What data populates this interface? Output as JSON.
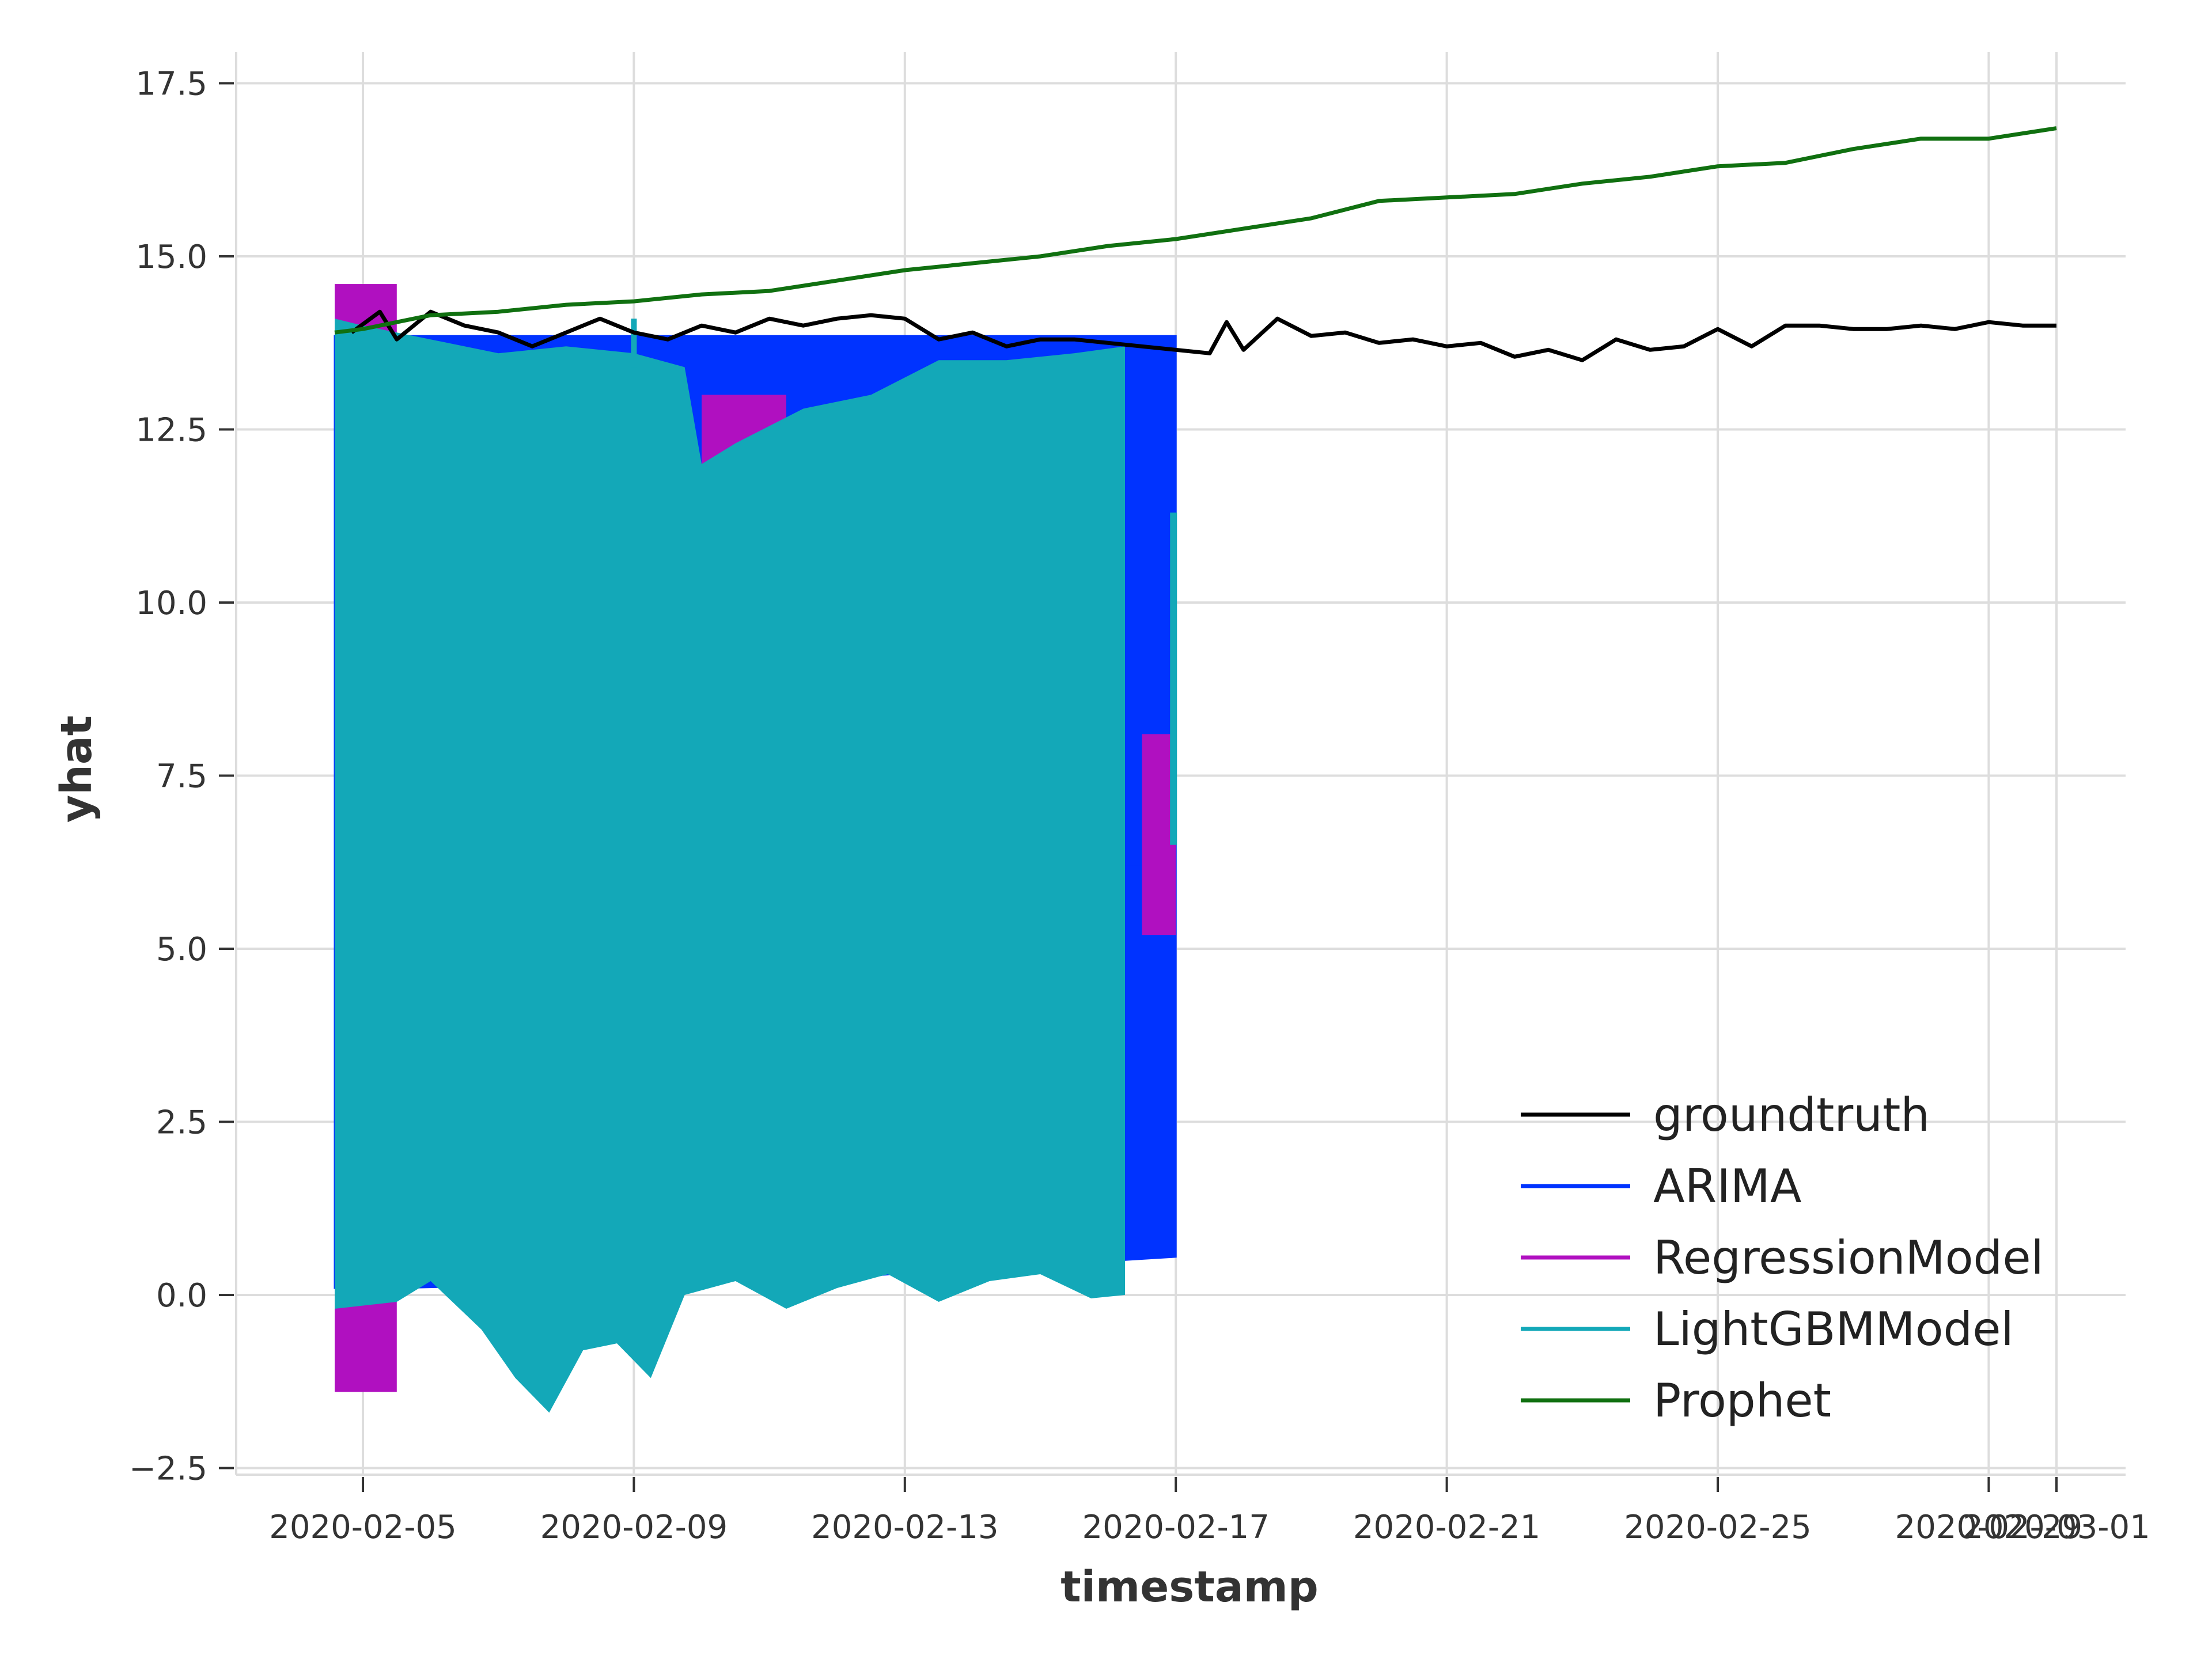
{
  "chart_data": {
    "type": "line",
    "xlabel": "timestamp",
    "ylabel": "yhat",
    "xlim": [
      "2020-02-04",
      "2020-03-02"
    ],
    "ylim": [
      -2.5,
      17.5
    ],
    "grid": true,
    "legend_position": "lower-right",
    "x_ticks": [
      "2020-02-05",
      "2020-02-09",
      "2020-02-13",
      "2020-02-17",
      "2020-02-21",
      "2020-02-25",
      "2020-02-29",
      "2020-03-01"
    ],
    "y_ticks": [
      "−2.5",
      "0.0",
      "2.5",
      "5.0",
      "7.5",
      "10.0",
      "12.5",
      "15.0",
      "17.5"
    ],
    "legend": [
      "groundtruth",
      "ARIMA",
      "RegressionModel",
      "LightGBMModel",
      "Prophet"
    ],
    "series": [
      {
        "name": "groundtruth",
        "color": "#000000",
        "style": "line",
        "points": [
          [
            "2020-02-04 20:00",
            13.9
          ],
          [
            "2020-02-05 06:00",
            14.2
          ],
          [
            "2020-02-05 12:00",
            13.8
          ],
          [
            "2020-02-06 00:00",
            14.2
          ],
          [
            "2020-02-06 12:00",
            14.0
          ],
          [
            "2020-02-07 00:00",
            13.9
          ],
          [
            "2020-02-07 12:00",
            13.7
          ],
          [
            "2020-02-08 00:00",
            13.9
          ],
          [
            "2020-02-08 12:00",
            14.1
          ],
          [
            "2020-02-09 00:00",
            13.9
          ],
          [
            "2020-02-09 12:00",
            13.8
          ],
          [
            "2020-02-10 00:00",
            14.0
          ],
          [
            "2020-02-10 12:00",
            13.9
          ],
          [
            "2020-02-11 00:00",
            14.1
          ],
          [
            "2020-02-11 12:00",
            14.0
          ],
          [
            "2020-02-12 00:00",
            14.1
          ],
          [
            "2020-02-12 12:00",
            14.15
          ],
          [
            "2020-02-13 00:00",
            14.1
          ],
          [
            "2020-02-13 12:00",
            13.8
          ],
          [
            "2020-02-14 00:00",
            13.9
          ],
          [
            "2020-02-14 12:00",
            13.7
          ],
          [
            "2020-02-15 00:00",
            13.8
          ],
          [
            "2020-02-15 12:00",
            13.8
          ],
          [
            "2020-02-16 00:00",
            13.75
          ],
          [
            "2020-02-16 12:00",
            13.7
          ],
          [
            "2020-02-17 00:00",
            13.65
          ],
          [
            "2020-02-17 12:00",
            13.6
          ],
          [
            "2020-02-17 18:00",
            14.05
          ],
          [
            "2020-02-18 00:00",
            13.65
          ],
          [
            "2020-02-18 12:00",
            14.1
          ],
          [
            "2020-02-19 00:00",
            13.85
          ],
          [
            "2020-02-19 12:00",
            13.9
          ],
          [
            "2020-02-20 00:00",
            13.75
          ],
          [
            "2020-02-20 12:00",
            13.8
          ],
          [
            "2020-02-21 00:00",
            13.7
          ],
          [
            "2020-02-21 12:00",
            13.75
          ],
          [
            "2020-02-22 00:00",
            13.55
          ],
          [
            "2020-02-22 12:00",
            13.65
          ],
          [
            "2020-02-23 00:00",
            13.5
          ],
          [
            "2020-02-23 12:00",
            13.8
          ],
          [
            "2020-02-24 00:00",
            13.65
          ],
          [
            "2020-02-24 12:00",
            13.7
          ],
          [
            "2020-02-25 00:00",
            13.95
          ],
          [
            "2020-02-25 12:00",
            13.7
          ],
          [
            "2020-02-26 00:00",
            14.0
          ],
          [
            "2020-02-26 12:00",
            14.0
          ],
          [
            "2020-02-27 00:00",
            13.95
          ],
          [
            "2020-02-27 12:00",
            13.95
          ],
          [
            "2020-02-28 00:00",
            14.0
          ],
          [
            "2020-02-28 12:00",
            13.95
          ],
          [
            "2020-02-29 00:00",
            14.05
          ],
          [
            "2020-02-29 12:00",
            14.0
          ],
          [
            "2020-03-01 00:00",
            14.0
          ]
        ]
      },
      {
        "name": "ARIMA",
        "color": "#0033ff",
        "style": "band",
        "x_range": [
          "2020-02-04 14:00",
          "2020-02-17 00:00"
        ],
        "upper": 13.85,
        "lower": [
          [
            0.1,
            "2020-02-04 14:00"
          ],
          [
            0.25,
            "2020-02-12 00:00"
          ],
          [
            0.55,
            "2020-02-17 00:00"
          ]
        ]
      },
      {
        "name": "RegressionModel",
        "color": "#b010c0",
        "style": "band",
        "x_range": [
          "2020-02-04 14:00",
          "2020-02-17 00:00"
        ],
        "max": 14.6,
        "min": -1.4
      },
      {
        "name": "LightGBMModel",
        "color": "#13a8b8",
        "style": "band",
        "x_range": [
          "2020-02-04 14:00",
          "2020-02-17 00:00"
        ],
        "max": 14.1,
        "min": -1.75
      },
      {
        "name": "Prophet",
        "color": "#107010",
        "style": "line",
        "points": [
          [
            "2020-02-04 14:00",
            13.9
          ],
          [
            "2020-02-05 00:00",
            13.95
          ],
          [
            "2020-02-06 00:00",
            14.15
          ],
          [
            "2020-02-07 00:00",
            14.2
          ],
          [
            "2020-02-08 00:00",
            14.3
          ],
          [
            "2020-02-09 00:00",
            14.35
          ],
          [
            "2020-02-10 00:00",
            14.45
          ],
          [
            "2020-02-11 00:00",
            14.5
          ],
          [
            "2020-02-12 00:00",
            14.65
          ],
          [
            "2020-02-13 00:00",
            14.8
          ],
          [
            "2020-02-14 00:00",
            14.9
          ],
          [
            "2020-02-15 00:00",
            15.0
          ],
          [
            "2020-02-16 00:00",
            15.15
          ],
          [
            "2020-02-17 00:00",
            15.25
          ],
          [
            "2020-02-18 00:00",
            15.4
          ],
          [
            "2020-02-19 00:00",
            15.55
          ],
          [
            "2020-02-20 00:00",
            15.8
          ],
          [
            "2020-02-21 00:00",
            15.85
          ],
          [
            "2020-02-22 00:00",
            15.9
          ],
          [
            "2020-02-23 00:00",
            16.05
          ],
          [
            "2020-02-24 00:00",
            16.15
          ],
          [
            "2020-02-25 00:00",
            16.3
          ],
          [
            "2020-02-26 00:00",
            16.35
          ],
          [
            "2020-02-27 00:00",
            16.55
          ],
          [
            "2020-02-28 00:00",
            16.7
          ],
          [
            "2020-02-29 00:00",
            16.7
          ],
          [
            "2020-03-01 00:00",
            16.85
          ]
        ]
      }
    ]
  }
}
